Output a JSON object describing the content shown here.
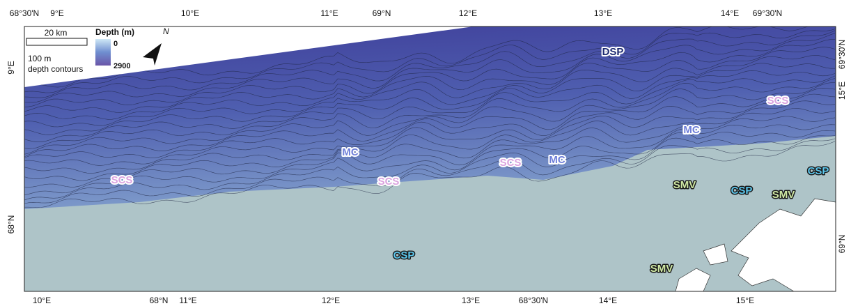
{
  "top_labels": [
    "68°30'N",
    "9°E",
    "10°E",
    "11°E",
    "69°N",
    "12°E",
    "13°E",
    "14°E",
    "69°30'N"
  ],
  "bottom_labels": [
    "10°E",
    "68°N",
    "11°E",
    "12°E",
    "13°E",
    "68°30'N",
    "14°E",
    "15°E"
  ],
  "left_labels": [
    "9°E",
    "68°N"
  ],
  "right_labels": [
    "69°30'N",
    "15°E",
    "69°N"
  ],
  "legend": {
    "scale": "20 km",
    "depth_title": "Depth (m)",
    "depth_min": "0",
    "depth_max": "2900",
    "contours_line1": "100 m",
    "contours_line2": "depth contours",
    "north": "N"
  },
  "regions": [
    "DSP",
    "SCS",
    "MC",
    "MC",
    "MC",
    "SCS",
    "SCS",
    "SCS",
    "SMV",
    "CSP",
    "CSP",
    "SMV",
    "CSP",
    "SMV"
  ]
}
